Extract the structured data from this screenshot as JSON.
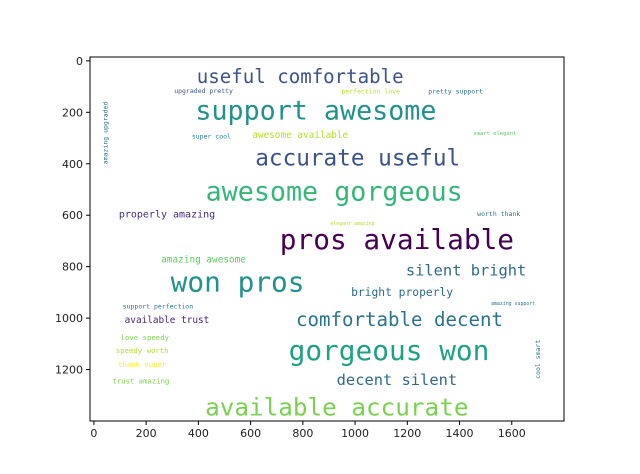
{
  "chart_data": {
    "type": "wordcloud",
    "title": "",
    "xlabel": "",
    "ylabel": "",
    "xlim": [
      -15,
      1800
    ],
    "ylim": [
      1400,
      -15
    ],
    "xticks": [
      0,
      200,
      400,
      600,
      800,
      1000,
      1200,
      1400,
      1600
    ],
    "yticks": [
      0,
      200,
      400,
      600,
      800,
      1000,
      1200
    ],
    "grid": false,
    "words": [
      {
        "text": "useful comfortable",
        "x": 790,
        "y": 60,
        "size": 118,
        "color": "#3b528b",
        "orient": "h"
      },
      {
        "text": "support awesome",
        "x": 850,
        "y": 195,
        "size": 165,
        "color": "#21918c",
        "orient": "h"
      },
      {
        "text": "upgraded pretty",
        "x": 420,
        "y": 118,
        "size": 40,
        "color": "#3b528b",
        "orient": "h"
      },
      {
        "text": "perfection love",
        "x": 1060,
        "y": 120,
        "size": 40,
        "color": "#b5de2b",
        "orient": "h"
      },
      {
        "text": "pretty support",
        "x": 1385,
        "y": 120,
        "size": 40,
        "color": "#2c728e",
        "orient": "h"
      },
      {
        "text": "amazing upgraded",
        "x": 45,
        "y": 280,
        "size": 40,
        "color": "#2c728e",
        "orient": "v"
      },
      {
        "text": "super cool",
        "x": 450,
        "y": 294,
        "size": 40,
        "color": "#26828e",
        "orient": "h"
      },
      {
        "text": "awesome available",
        "x": 790,
        "y": 290,
        "size": 58,
        "color": "#b5de2b",
        "orient": "h"
      },
      {
        "text": "smart elegant",
        "x": 1535,
        "y": 285,
        "size": 34,
        "color": "#5ec962",
        "orient": "h"
      },
      {
        "text": "accurate useful",
        "x": 1010,
        "y": 380,
        "size": 140,
        "color": "#3b528b",
        "orient": "h"
      },
      {
        "text": "awesome gorgeous",
        "x": 920,
        "y": 510,
        "size": 165,
        "color": "#35b779",
        "orient": "h"
      },
      {
        "text": "properly amazing",
        "x": 280,
        "y": 600,
        "size": 62,
        "color": "#472d7b",
        "orient": "h"
      },
      {
        "text": "elegant amazing",
        "x": 990,
        "y": 635,
        "size": 30,
        "color": "#b5de2b",
        "orient": "h"
      },
      {
        "text": "worth thank",
        "x": 1550,
        "y": 595,
        "size": 40,
        "color": "#2c728e",
        "orient": "h"
      },
      {
        "text": "pros available",
        "x": 1160,
        "y": 695,
        "size": 172,
        "color": "#440154",
        "orient": "h"
      },
      {
        "text": "amazing awesome",
        "x": 420,
        "y": 775,
        "size": 58,
        "color": "#5ec962",
        "orient": "h"
      },
      {
        "text": "won pros",
        "x": 550,
        "y": 860,
        "size": 172,
        "color": "#21918c",
        "orient": "h"
      },
      {
        "text": "silent bright",
        "x": 1425,
        "y": 815,
        "size": 95,
        "color": "#31688e",
        "orient": "h"
      },
      {
        "text": "bright properly",
        "x": 1180,
        "y": 900,
        "size": 70,
        "color": "#31688e",
        "orient": "h"
      },
      {
        "text": "amazing support",
        "x": 1605,
        "y": 945,
        "size": 30,
        "color": "#2c728e",
        "orient": "h"
      },
      {
        "text": "support perfection",
        "x": 245,
        "y": 955,
        "size": 40,
        "color": "#2c728e",
        "orient": "h"
      },
      {
        "text": "comfortable decent",
        "x": 1170,
        "y": 1005,
        "size": 118,
        "color": "#2c728e",
        "orient": "h"
      },
      {
        "text": "available trust",
        "x": 280,
        "y": 1010,
        "size": 58,
        "color": "#482878",
        "orient": "h"
      },
      {
        "text": "love speedy",
        "x": 195,
        "y": 1075,
        "size": 45,
        "color": "#7ad151",
        "orient": "h"
      },
      {
        "text": "speedy worth",
        "x": 185,
        "y": 1125,
        "size": 45,
        "color": "#b5de2b",
        "orient": "h"
      },
      {
        "text": "thank super",
        "x": 185,
        "y": 1180,
        "size": 45,
        "color": "#fde725",
        "orient": "h"
      },
      {
        "text": "cool smart",
        "x": 1700,
        "y": 1160,
        "size": 40,
        "color": "#2c728e",
        "orient": "v"
      },
      {
        "text": "gorgeous won",
        "x": 1130,
        "y": 1125,
        "size": 172,
        "color": "#1fa187",
        "orient": "h"
      },
      {
        "text": "decent silent",
        "x": 1160,
        "y": 1240,
        "size": 95,
        "color": "#31688e",
        "orient": "h"
      },
      {
        "text": "trust amazing",
        "x": 180,
        "y": 1245,
        "size": 45,
        "color": "#7ad151",
        "orient": "h"
      },
      {
        "text": "available accurate",
        "x": 930,
        "y": 1345,
        "size": 150,
        "color": "#7ad151",
        "orient": "h"
      }
    ]
  }
}
